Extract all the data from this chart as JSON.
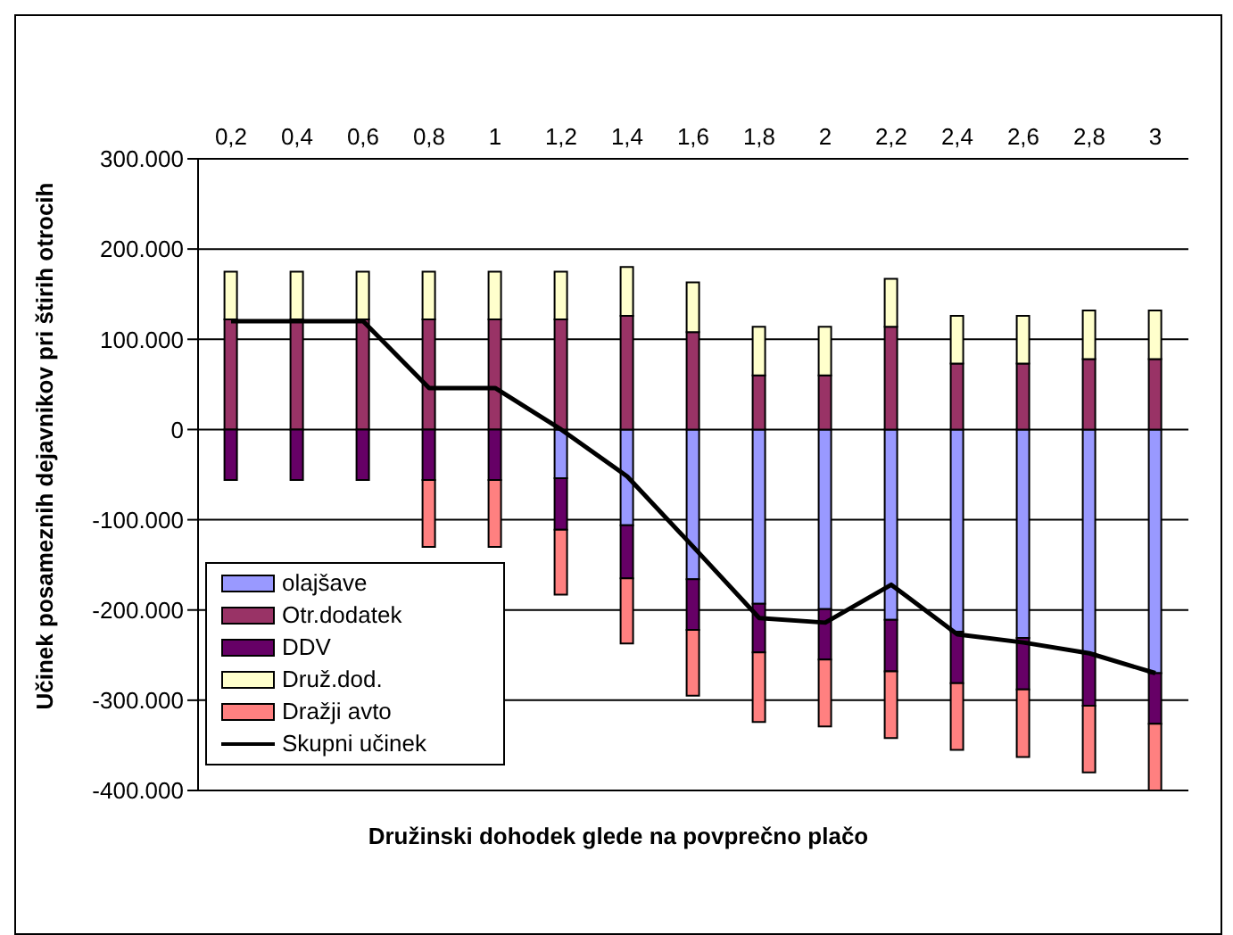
{
  "chart_data": {
    "type": "bar",
    "stacked": true,
    "xlabel": "Družinski dohodek glede na povprečno plačo",
    "ylabel": "Učinek posameznih dejavnikov pri štirih otrocih",
    "categories": [
      "0,2",
      "0,4",
      "0,6",
      "0,8",
      "1",
      "1,2",
      "1,4",
      "1,6",
      "1,8",
      "2",
      "2,2",
      "2,4",
      "2,6",
      "2,8",
      "3"
    ],
    "series": [
      {
        "name": "olajšave",
        "color": "#9999ff",
        "values": [
          0,
          0,
          0,
          0,
          0,
          -54000,
          -106000,
          -166000,
          -193000,
          -199000,
          -211000,
          -224000,
          -231000,
          -248000,
          -270000
        ]
      },
      {
        "name": "Otr.dodatek",
        "color": "#993366",
        "values": [
          122000,
          122000,
          122000,
          122000,
          122000,
          122000,
          126000,
          108000,
          60000,
          60000,
          114000,
          73000,
          73000,
          78000,
          78000
        ]
      },
      {
        "name": "DDV",
        "color": "#660066",
        "values": [
          -56000,
          -56000,
          -56000,
          -56000,
          -56000,
          -57000,
          -59000,
          -56000,
          -54000,
          -56000,
          -57000,
          -57000,
          -57000,
          -58000,
          -56000
        ]
      },
      {
        "name": "Druž.dod.",
        "color": "#ffffcc",
        "values": [
          53000,
          53000,
          53000,
          53000,
          53000,
          53000,
          54000,
          55000,
          54000,
          54000,
          53000,
          53000,
          53000,
          54000,
          54000
        ]
      },
      {
        "name": "Dražji avto",
        "color": "#ff8080",
        "values": [
          0,
          0,
          0,
          -74000,
          -74000,
          -72000,
          -72000,
          -73000,
          -77000,
          -74000,
          -74000,
          -74000,
          -75000,
          -74000,
          -74000
        ]
      },
      {
        "name": "Skupni učinek",
        "type": "line",
        "color": "#000000",
        "values": [
          120000,
          120000,
          120000,
          46000,
          46000,
          0,
          -52000,
          -130000,
          -209000,
          -214000,
          -172000,
          -227000,
          -236000,
          -248000,
          -270000
        ]
      }
    ],
    "ylim": [
      -400000,
      300000
    ],
    "yticks": [
      {
        "value": -400000,
        "label": "-400.000"
      },
      {
        "value": -300000,
        "label": "-300.000"
      },
      {
        "value": -200000,
        "label": "-200.000"
      },
      {
        "value": -100000,
        "label": "-100.000"
      },
      {
        "value": 0,
        "label": "0"
      },
      {
        "value": 100000,
        "label": "100.000"
      },
      {
        "value": 200000,
        "label": "200.000"
      },
      {
        "value": 300000,
        "label": "300.000"
      }
    ],
    "grid": "y",
    "legend": "bottom left",
    "marker": "none",
    "line_style": "solid"
  }
}
